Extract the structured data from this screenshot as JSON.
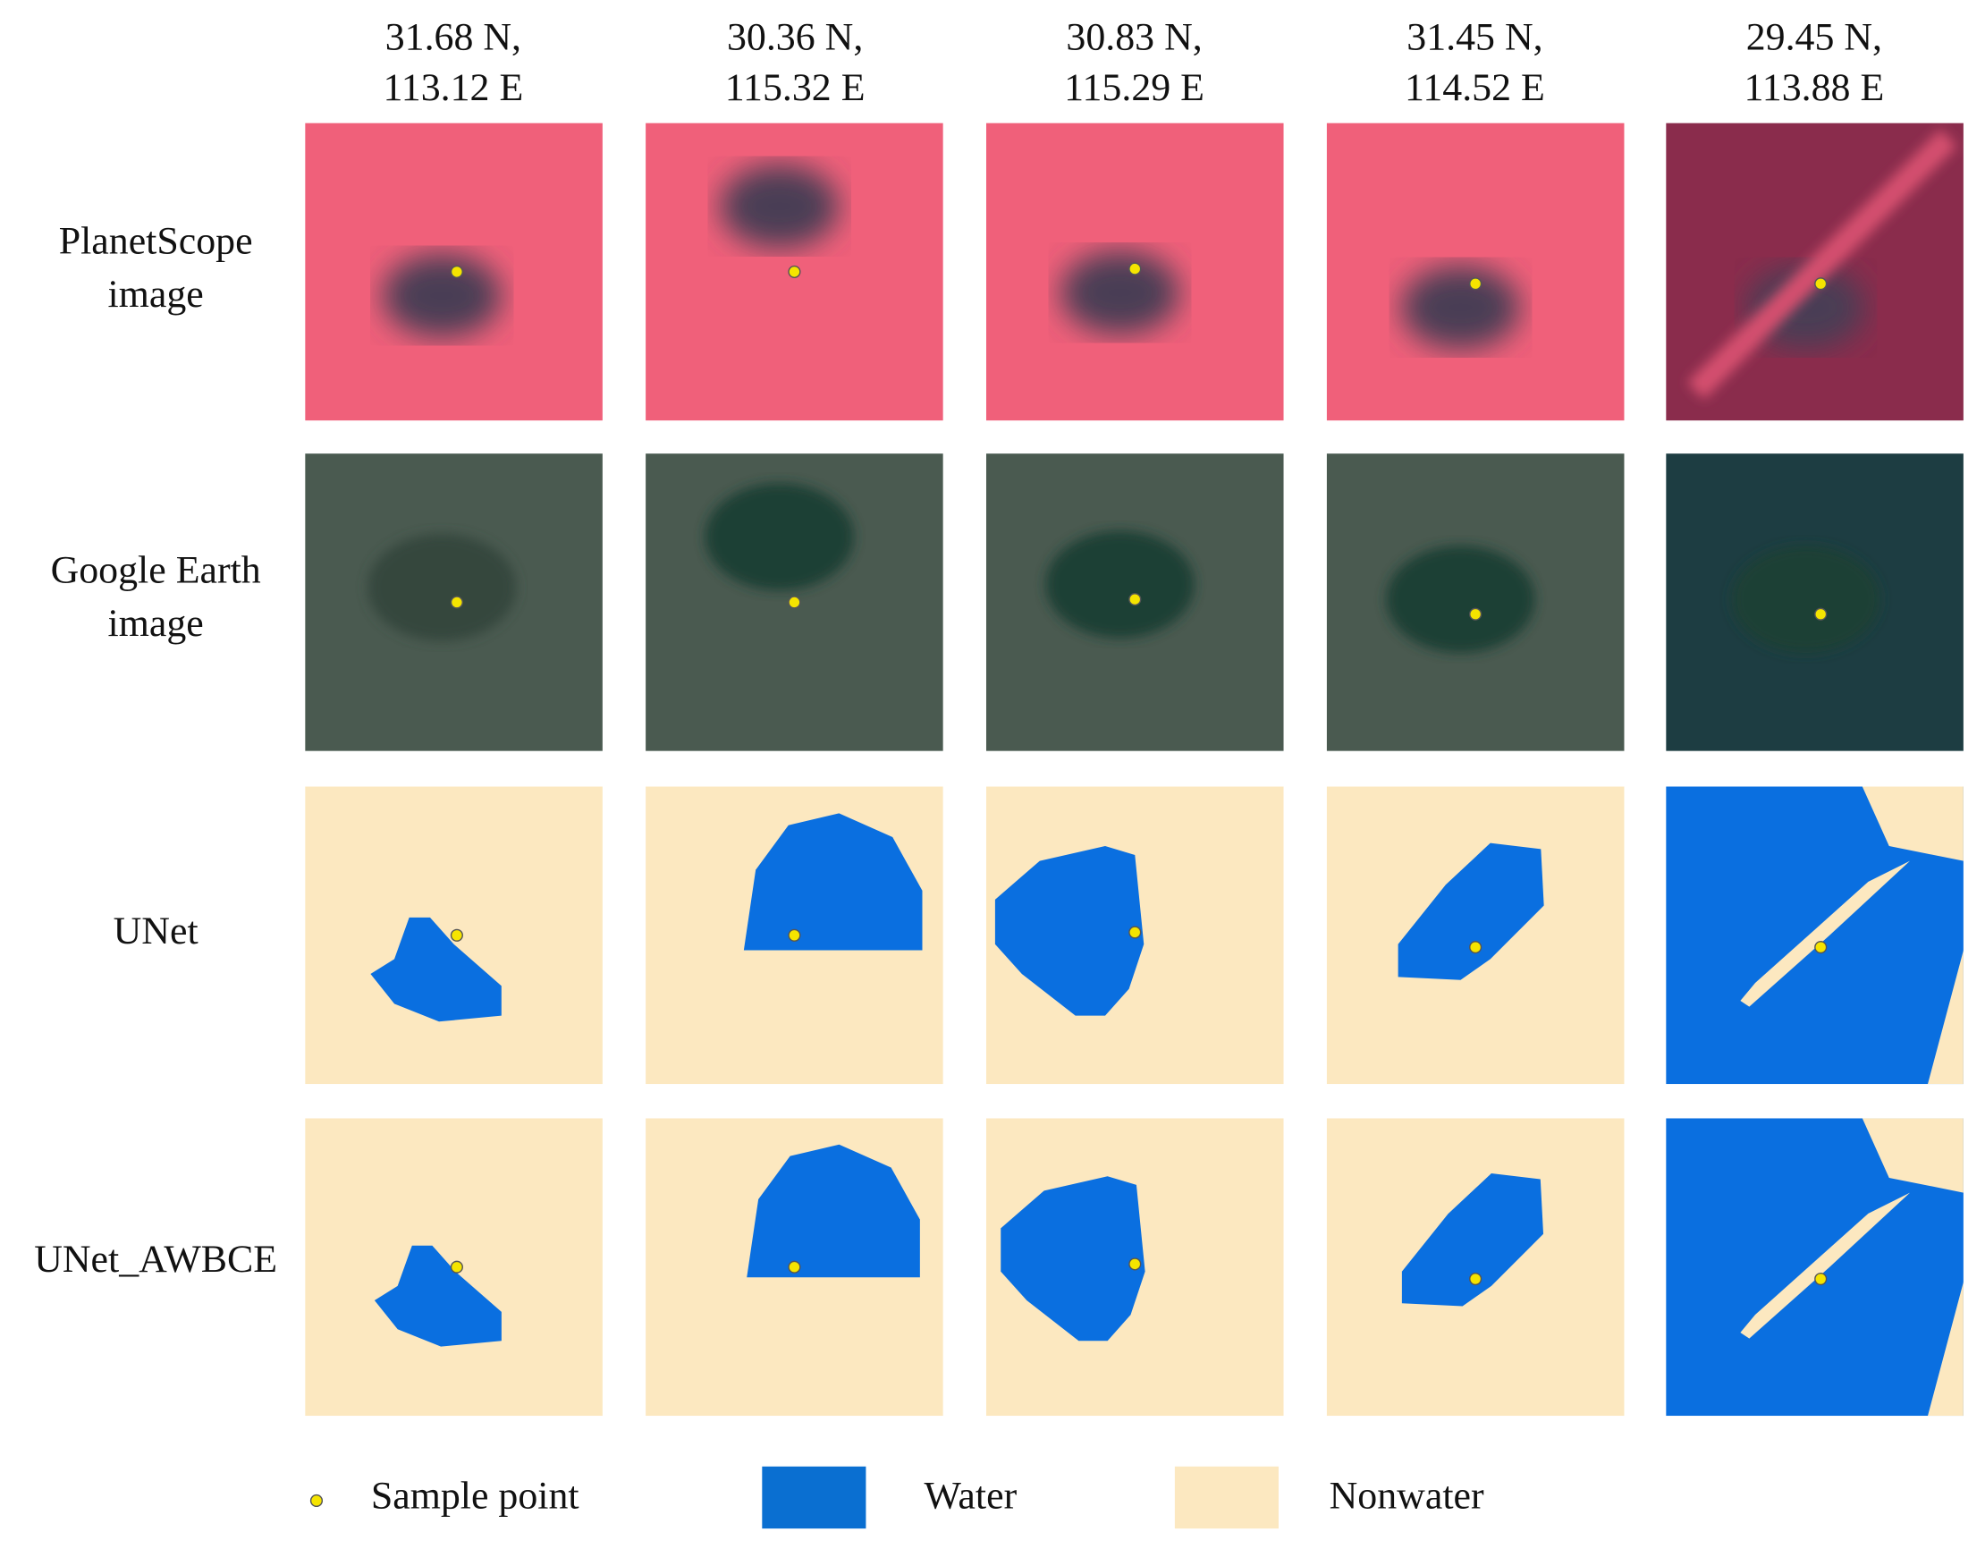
{
  "columns": [
    {
      "latitude": "31.68 N,",
      "longitude": "113.12 E"
    },
    {
      "latitude": "30.36 N,",
      "longitude": "115.32 E"
    },
    {
      "latitude": "30.83 N,",
      "longitude": "115.29 E"
    },
    {
      "latitude": "31.45 N,",
      "longitude": "114.52 E"
    },
    {
      "latitude": "29.45 N,",
      "longitude": "113.88 E"
    }
  ],
  "rows": [
    [
      "PlanetScope",
      "image"
    ],
    [
      "Google Earth",
      "image"
    ],
    [
      "UNet"
    ],
    [
      "UNet_AWBCE"
    ]
  ],
  "legend": {
    "sample_point": "Sample point",
    "water": "Water",
    "nonwater": "Nonwater"
  }
}
